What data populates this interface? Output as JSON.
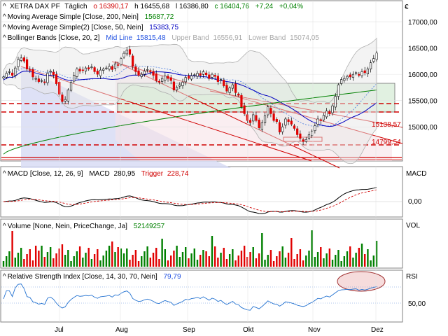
{
  "header": {
    "symbol": "XETRA DAX PF",
    "interval": "Täglich",
    "open": "o 16390,17",
    "high": "h 16455,68",
    "low": "l 16386,80",
    "close": "c 16404,76",
    "change": "+7,24",
    "change_pct": "+0,04%"
  },
  "indicators": {
    "sma200": {
      "label": "Moving Average Simple [Close, 200, Nein]",
      "value": "15687,72",
      "color": "#008000"
    },
    "sma50": {
      "label": "Moving Average Simple(2) [Close, 50, Nein]",
      "value": "15383,75",
      "color": "#0000c0"
    },
    "bb": {
      "label": "Bollinger Bands [Close, 20, 2]",
      "mid_label": "Mid Line",
      "mid_value": "15815,48",
      "upper_label": "Upper Band",
      "upper_value": "16556,91",
      "lower_label": "Lower Band",
      "lower_value": "15074,05"
    }
  },
  "levels": {
    "resistance_label": "15138,57",
    "support_label": "14799,54"
  },
  "macd": {
    "label": "MACD [Close, 12, 26, 9]",
    "name": "MACD",
    "value": "280,95",
    "trigger_label": "Trigger",
    "trigger_value": "228,74",
    "axis_tag": "MACD",
    "zero_tick": "0,00"
  },
  "volume": {
    "label": "Volume [None, Nein, PriceChange, Ja]",
    "value": "52149257",
    "axis_tag": "VOL"
  },
  "rsi": {
    "label": "Relative Strength Index [Close, 14, 30, 70, Nein]",
    "value": "79,79",
    "axis_tag": "RSI",
    "tick": "50,00"
  },
  "axis_currency": "€",
  "price_ticks": [
    "17000,00",
    "16500,00",
    "16000,00",
    "15500,00",
    "15000,00"
  ],
  "x_ticks": [
    "Jul",
    "Aug",
    "Sep",
    "Okt",
    "Nov",
    "Dez"
  ],
  "colors": {
    "up": "#008000",
    "down": "#e00000",
    "grid": "#c8c8c8",
    "border": "#808080"
  },
  "chart_data": {
    "type": "candlestick",
    "ylim": [
      14350,
      17400
    ],
    "close": [
      15950,
      16020,
      16050,
      15980,
      16120,
      16280,
      16310,
      16250,
      16100,
      16080,
      15950,
      15920,
      15860,
      15880,
      15840,
      16020,
      16060,
      15990,
      15820,
      15620,
      15480,
      15520,
      15700,
      15850,
      15980,
      16100,
      16060,
      16080,
      16120,
      16100,
      16140,
      16050,
      16000,
      16080,
      16100,
      16120,
      16150,
      16090,
      16200,
      16180,
      16300,
      16400,
      16460,
      16380,
      16150,
      16050,
      15980,
      16000,
      16060,
      16090,
      16050,
      15980,
      15880,
      15850,
      15920,
      15970,
      15920,
      15880,
      15700,
      15750,
      15800,
      15850,
      15940,
      15920,
      15970,
      15990,
      16020,
      15980,
      16050,
      15990,
      15920,
      16000,
      15960,
      15860,
      15900,
      15780,
      15680,
      15740,
      15800,
      15650,
      15600,
      15380,
      15250,
      15120,
      15080,
      15230,
      15120,
      14980,
      15080,
      15210,
      15380,
      15250,
      15120,
      15100,
      14900,
      15000,
      15150,
      15100,
      15050,
      14970,
      14850,
      14780,
      14720,
      14760,
      14850,
      14920,
      15020,
      15150,
      15120,
      15220,
      15300,
      15250,
      15400,
      15580,
      15800,
      15900,
      15920,
      15960,
      15950,
      16000,
      16030,
      15980,
      16050,
      16030,
      16100,
      16220,
      16300,
      16404
    ]
  }
}
